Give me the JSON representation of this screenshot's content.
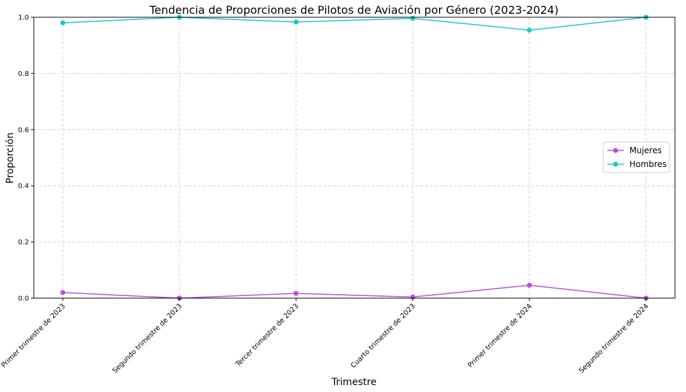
{
  "chart_data": {
    "type": "line",
    "title": "Tendencia de Proporciones de Pilotos de Aviación por Género (2023-2024)",
    "xlabel": "Trimestre",
    "ylabel": "Proporción",
    "categories": [
      "Primer trimestre de 2023",
      "Segundo trimestre de 2023",
      "Tercer trimestre de 2023",
      "Cuarto trimestre de 2023",
      "Primer trimestre de 2024",
      "Segundo trimestre de 2024"
    ],
    "yticks": [
      "0.0",
      "0.2",
      "0.4",
      "0.6",
      "0.8",
      "1.0"
    ],
    "ylim": [
      0,
      1
    ],
    "grid": true,
    "legend_position": "center-right",
    "series": [
      {
        "name": "Mujeres",
        "color": "#b452d8",
        "values": [
          0.02,
          0.0,
          0.017,
          0.004,
          0.046,
          0.0
        ]
      },
      {
        "name": "Hombres",
        "color": "#17c9cc",
        "values": [
          0.98,
          1.0,
          0.983,
          0.996,
          0.954,
          1.0
        ]
      }
    ]
  }
}
